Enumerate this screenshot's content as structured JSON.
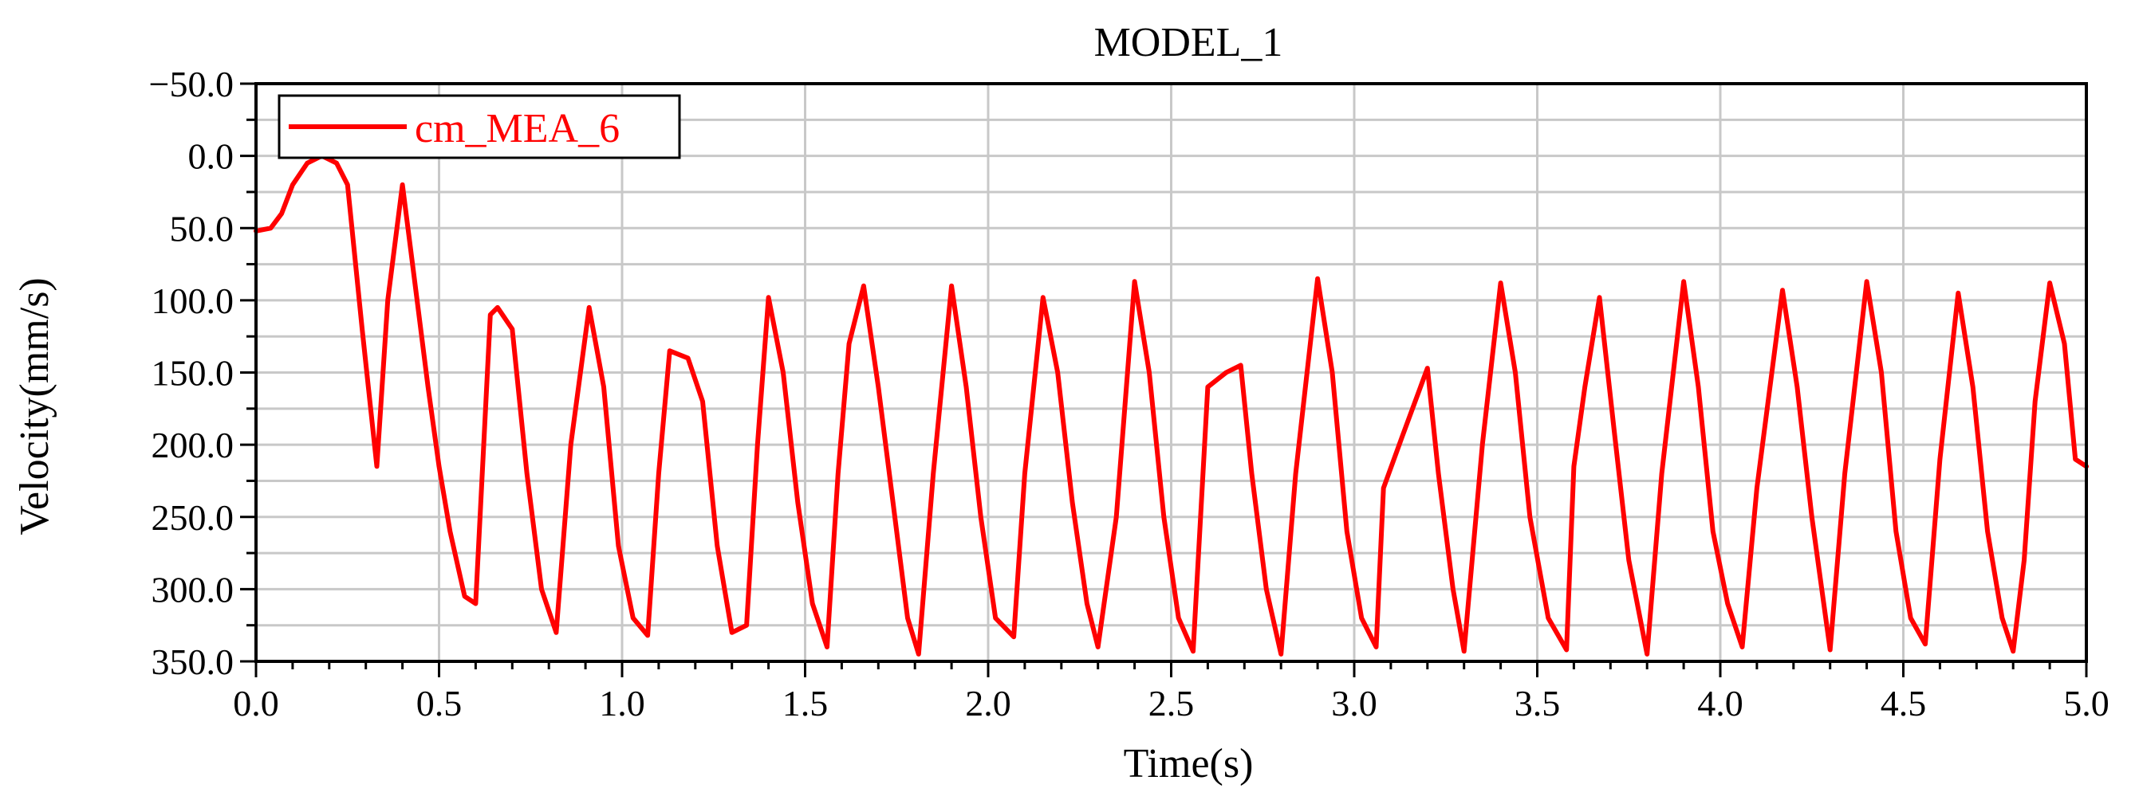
{
  "chart_data": {
    "type": "line",
    "title": "MODEL_1",
    "xlabel": "Time(s)",
    "ylabel": "Velocity(mm/s)",
    "xlim": [
      0,
      5
    ],
    "ylim": [
      -50,
      350
    ],
    "y_inverted": true,
    "grid": true,
    "legend_position": "top-left",
    "x_ticks": [
      "0.0",
      "0.5",
      "1.0",
      "1.5",
      "2.0",
      "2.5",
      "3.0",
      "3.5",
      "4.0",
      "4.5",
      "5.0"
    ],
    "y_ticks": [
      "−50.0",
      "0.0",
      "50.0",
      "100.0",
      "150.0",
      "200.0",
      "250.0",
      "300.0",
      "350.0"
    ],
    "series": [
      {
        "name": "cm_MEA_6",
        "color": "#ff0000",
        "points": [
          [
            0.0,
            52
          ],
          [
            0.04,
            50
          ],
          [
            0.07,
            40
          ],
          [
            0.1,
            20
          ],
          [
            0.14,
            5
          ],
          [
            0.18,
            0
          ],
          [
            0.22,
            5
          ],
          [
            0.25,
            20
          ],
          [
            0.29,
            120
          ],
          [
            0.33,
            215
          ],
          [
            0.36,
            100
          ],
          [
            0.4,
            20
          ],
          [
            0.43,
            80
          ],
          [
            0.47,
            160
          ],
          [
            0.5,
            215
          ],
          [
            0.53,
            260
          ],
          [
            0.57,
            305
          ],
          [
            0.6,
            310
          ],
          [
            0.64,
            110
          ],
          [
            0.66,
            105
          ],
          [
            0.7,
            120
          ],
          [
            0.74,
            220
          ],
          [
            0.78,
            300
          ],
          [
            0.82,
            330
          ],
          [
            0.86,
            200
          ],
          [
            0.91,
            105
          ],
          [
            0.95,
            160
          ],
          [
            0.99,
            270
          ],
          [
            1.03,
            320
          ],
          [
            1.07,
            332
          ],
          [
            1.1,
            220
          ],
          [
            1.13,
            135
          ],
          [
            1.18,
            140
          ],
          [
            1.22,
            170
          ],
          [
            1.26,
            270
          ],
          [
            1.3,
            330
          ],
          [
            1.34,
            325
          ],
          [
            1.37,
            200
          ],
          [
            1.4,
            98
          ],
          [
            1.44,
            150
          ],
          [
            1.48,
            240
          ],
          [
            1.52,
            310
          ],
          [
            1.56,
            340
          ],
          [
            1.59,
            220
          ],
          [
            1.62,
            130
          ],
          [
            1.66,
            90
          ],
          [
            1.7,
            160
          ],
          [
            1.74,
            240
          ],
          [
            1.78,
            320
          ],
          [
            1.81,
            345
          ],
          [
            1.85,
            220
          ],
          [
            1.9,
            90
          ],
          [
            1.94,
            160
          ],
          [
            1.98,
            250
          ],
          [
            2.02,
            320
          ],
          [
            2.07,
            333
          ],
          [
            2.1,
            220
          ],
          [
            2.15,
            98
          ],
          [
            2.19,
            150
          ],
          [
            2.23,
            240
          ],
          [
            2.27,
            310
          ],
          [
            2.3,
            340
          ],
          [
            2.35,
            250
          ],
          [
            2.4,
            87
          ],
          [
            2.44,
            150
          ],
          [
            2.48,
            250
          ],
          [
            2.52,
            320
          ],
          [
            2.56,
            343
          ],
          [
            2.6,
            160
          ],
          [
            2.65,
            150
          ],
          [
            2.69,
            145
          ],
          [
            2.72,
            220
          ],
          [
            2.76,
            300
          ],
          [
            2.8,
            345
          ],
          [
            2.84,
            220
          ],
          [
            2.9,
            85
          ],
          [
            2.94,
            150
          ],
          [
            2.98,
            260
          ],
          [
            3.02,
            320
          ],
          [
            3.06,
            340
          ],
          [
            3.08,
            230
          ],
          [
            3.13,
            195
          ],
          [
            3.2,
            147
          ],
          [
            3.23,
            220
          ],
          [
            3.27,
            300
          ],
          [
            3.3,
            343
          ],
          [
            3.35,
            200
          ],
          [
            3.4,
            88
          ],
          [
            3.44,
            150
          ],
          [
            3.48,
            250
          ],
          [
            3.53,
            320
          ],
          [
            3.58,
            342
          ],
          [
            3.6,
            215
          ],
          [
            3.63,
            160
          ],
          [
            3.67,
            98
          ],
          [
            3.71,
            190
          ],
          [
            3.75,
            280
          ],
          [
            3.8,
            345
          ],
          [
            3.84,
            220
          ],
          [
            3.9,
            87
          ],
          [
            3.94,
            160
          ],
          [
            3.98,
            260
          ],
          [
            4.02,
            310
          ],
          [
            4.06,
            340
          ],
          [
            4.1,
            230
          ],
          [
            4.17,
            93
          ],
          [
            4.21,
            160
          ],
          [
            4.25,
            250
          ],
          [
            4.3,
            342
          ],
          [
            4.34,
            220
          ],
          [
            4.4,
            87
          ],
          [
            4.44,
            150
          ],
          [
            4.48,
            260
          ],
          [
            4.52,
            320
          ],
          [
            4.56,
            338
          ],
          [
            4.6,
            210
          ],
          [
            4.65,
            95
          ],
          [
            4.69,
            160
          ],
          [
            4.73,
            260
          ],
          [
            4.77,
            320
          ],
          [
            4.8,
            343
          ],
          [
            4.83,
            280
          ],
          [
            4.86,
            170
          ],
          [
            4.9,
            88
          ],
          [
            4.94,
            130
          ],
          [
            4.97,
            210
          ],
          [
            5.0,
            215
          ]
        ]
      }
    ]
  }
}
